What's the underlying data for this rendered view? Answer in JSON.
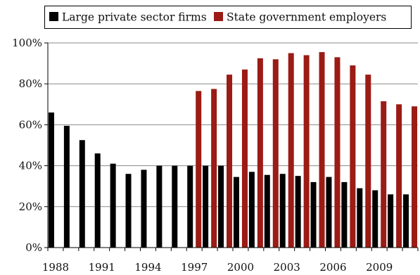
{
  "chart_data": {
    "type": "bar",
    "title": "",
    "xlabel": "",
    "ylabel": "",
    "ylim": [
      0,
      100
    ],
    "y_ticks": [
      "0%",
      "20%",
      "40%",
      "60%",
      "80%",
      "100%"
    ],
    "x_tick_labels": [
      "1988",
      "1991",
      "1994",
      "1997",
      "2000",
      "2003",
      "2006",
      "2009"
    ],
    "grid": "horizontal",
    "legend_position": "top",
    "categories": [
      1988,
      1989,
      1990,
      1991,
      1992,
      1993,
      1994,
      1995,
      1996,
      1997,
      1998,
      1999,
      2000,
      2001,
      2002,
      2003,
      2004,
      2005,
      2006,
      2007,
      2008,
      2009,
      2010,
      2011
    ],
    "series": [
      {
        "name": "Large private sector firms",
        "color": "#000000",
        "values": [
          66,
          59.5,
          52.5,
          46,
          41,
          36,
          38,
          40,
          40,
          40,
          40,
          40,
          34.5,
          37,
          35.5,
          36,
          35,
          32,
          34.5,
          32,
          29,
          28,
          26,
          26
        ]
      },
      {
        "name": "State government employers",
        "color": "#9b1b15",
        "values": [
          null,
          null,
          null,
          null,
          null,
          null,
          null,
          null,
          null,
          76.5,
          77.5,
          84.5,
          87,
          92.5,
          92,
          95,
          94,
          95.5,
          93,
          89,
          84.5,
          71.5,
          70,
          69
        ]
      }
    ]
  }
}
